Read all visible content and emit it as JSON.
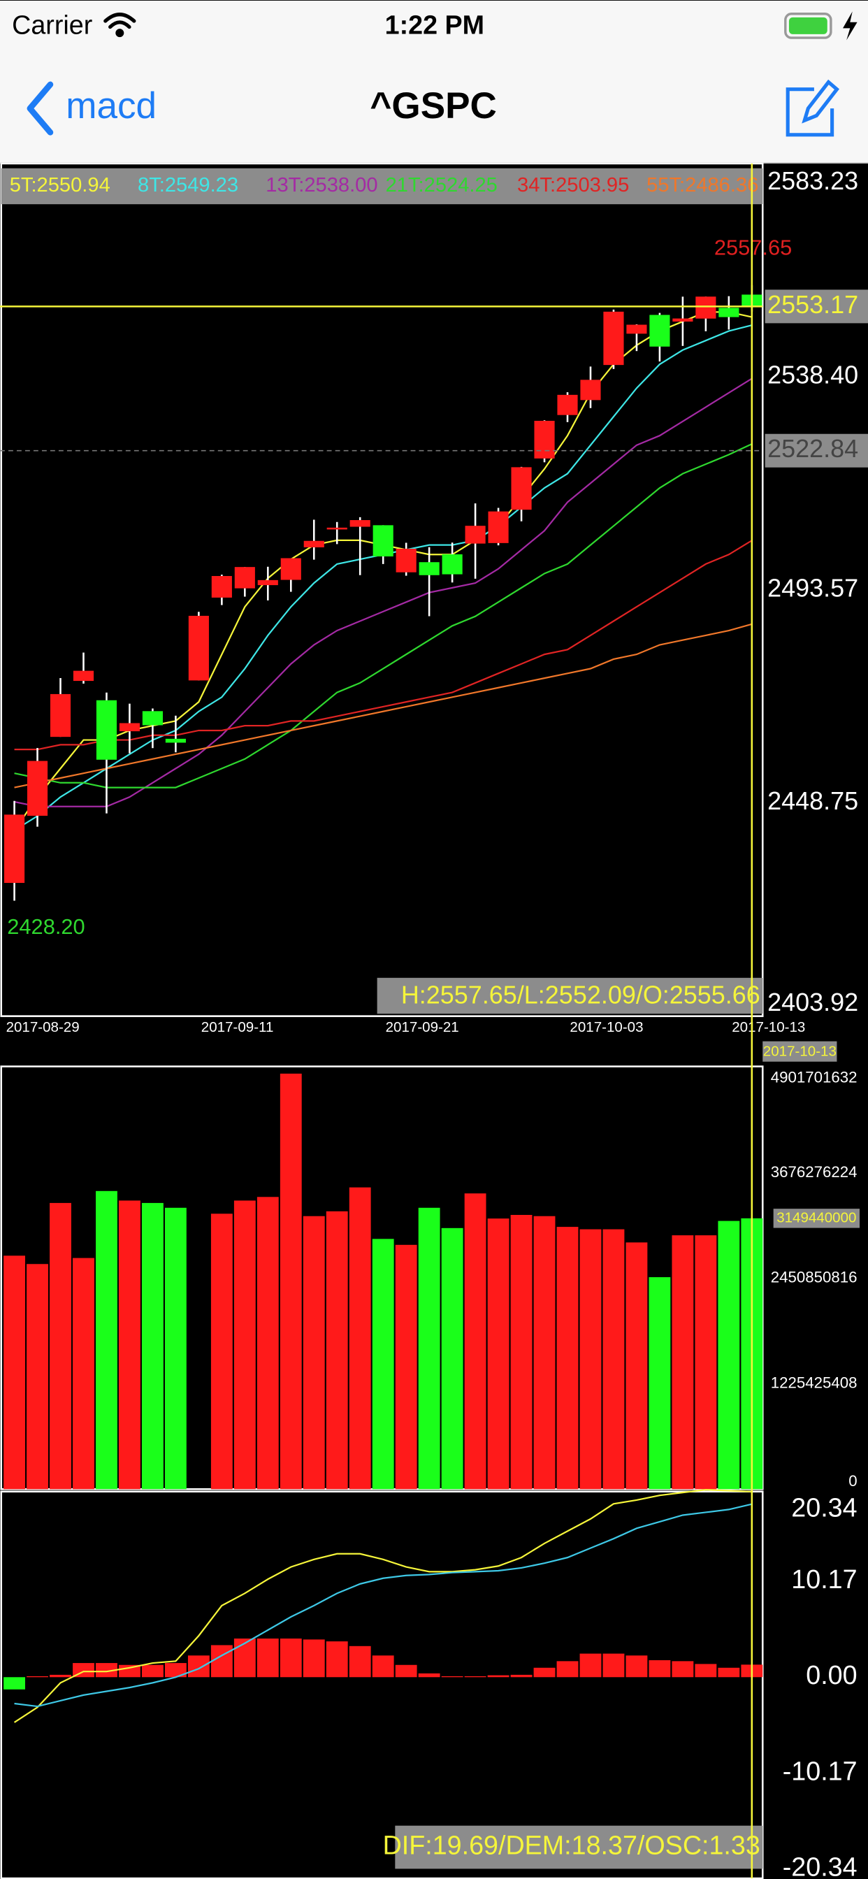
{
  "status_bar": {
    "carrier": "Carrier",
    "time": "1:22 PM"
  },
  "nav": {
    "back": "macd",
    "title": "^GSPC"
  },
  "chart_data": [
    {
      "type": "candlestick",
      "categories": [
        "2017-08-29",
        null,
        null,
        null,
        null,
        null,
        null,
        null,
        "2017-09-11",
        null,
        null,
        null,
        null,
        null,
        null,
        null,
        "2017-09-21",
        null,
        null,
        null,
        null,
        null,
        null,
        null,
        "2017-10-03",
        null,
        null,
        null,
        null,
        null,
        null,
        null,
        "2017-10-13"
      ],
      "open": [
        2431.94,
        2446.06,
        2462.65,
        2474.42,
        2470.35,
        2463.83,
        2468.06,
        2462.25,
        2474.52,
        2491.94,
        2493.89,
        2494.56,
        2495.67,
        2502.51,
        2506.29,
        2506.84,
        2507.16,
        2497.26,
        2499.39,
        2501.04,
        2503.3,
        2503.41,
        2510.42,
        2521.2,
        2530.34,
        2533.48,
        2540.86,
        2547.44,
        2551.39,
        2549.99,
        2550.62,
        2552.88,
        2555.66
      ],
      "high": [
        2449.19,
        2460.31,
        2475.01,
        2480.38,
        2471.97,
        2469.64,
        2468.62,
        2467.11,
        2488.95,
        2496.77,
        2498.37,
        2498.43,
        2500.23,
        2508.32,
        2507.84,
        2508.85,
        2507.16,
        2503.47,
        2502.54,
        2503.51,
        2511.75,
        2510.81,
        2519.44,
        2529.23,
        2535.13,
        2540.53,
        2552.51,
        2549.41,
        2551.82,
        2555.23,
        2555.24,
        2555.33,
        2557.65
      ],
      "low": [
        2428.2,
        2443.77,
        2462.65,
        2473.85,
        2446.55,
        2459.2,
        2460.29,
        2459.4,
        2474.52,
        2490.37,
        2492.14,
        2491.35,
        2493.16,
        2499.92,
        2503.19,
        2496.67,
        2499,
        2496.54,
        2488.03,
        2495.12,
        2495.91,
        2502.93,
        2507.99,
        2520.4,
        2528.85,
        2531.8,
        2540.02,
        2543.79,
        2541.6,
        2544.86,
        2547.95,
        2548.31,
        2552.09
      ],
      "close": [
        2446.3,
        2457.59,
        2471.65,
        2476.55,
        2457.85,
        2465.54,
        2465.1,
        2461.43,
        2488.11,
        2496.48,
        2498.37,
        2495.62,
        2500.23,
        2503.87,
        2506.65,
        2508.24,
        2500.6,
        2502.22,
        2496.66,
        2496.84,
        2507.04,
        2510.06,
        2519.36,
        2529.12,
        2534.58,
        2537.74,
        2552.07,
        2549.33,
        2544.73,
        2550.64,
        2555.24,
        2550.93,
        2553.17
      ],
      "up_color": "#ff1a1a",
      "down_color": "#1aff1a",
      "series": [
        {
          "name": "5T:2550.94",
          "color": "#f5f53a",
          "values": [
            2443,
            2450,
            2456,
            2462,
            2462,
            2464,
            2465,
            2466,
            2470,
            2480,
            2490,
            2496,
            2500,
            2503,
            2504,
            2504,
            2503,
            2502,
            2501,
            2501,
            2504,
            2507,
            2513,
            2519,
            2526,
            2535,
            2541,
            2545,
            2548,
            2550,
            2552,
            2552,
            2550.94
          ]
        },
        {
          "name": "8T:2549.23",
          "color": "#3ee6e6",
          "values": [
            2443,
            2446,
            2450,
            2453,
            2456,
            2459,
            2462,
            2464,
            2468,
            2471,
            2477,
            2484,
            2490,
            2495,
            2499,
            2500,
            2501,
            2502,
            2503,
            2503,
            2504,
            2507,
            2511,
            2515,
            2518,
            2524,
            2530,
            2536,
            2541,
            2544,
            2546,
            2548,
            2549.23
          ]
        },
        {
          "name": "13T:2538.00",
          "color": "#a42aa4",
          "values": [
            2449,
            2448,
            2448,
            2448,
            2448,
            2450,
            2453,
            2456,
            2459,
            2463,
            2468,
            2473,
            2478,
            2482,
            2485,
            2487,
            2489,
            2491,
            2493,
            2494,
            2495,
            2498,
            2502,
            2506,
            2512,
            2516,
            2520,
            2524,
            2526,
            2529,
            2532,
            2535,
            2538
          ]
        },
        {
          "name": "21T:2524.25",
          "color": "#2fd82f",
          "values": [
            2455,
            2454,
            2453,
            2453,
            2452,
            2452,
            2452,
            2452,
            2454,
            2456,
            2458,
            2461,
            2464,
            2468,
            2472,
            2474,
            2477,
            2480,
            2483,
            2486,
            2488,
            2491,
            2494,
            2497,
            2499,
            2503,
            2507,
            2511,
            2515,
            2518,
            2520,
            2522,
            2524.25
          ]
        },
        {
          "name": "34T:2503.95",
          "color": "#e02424",
          "values": [
            2460,
            2460,
            2461,
            2461,
            2462,
            2462,
            2463,
            2463,
            2464,
            2464,
            2465,
            2465,
            2466,
            2466,
            2467,
            2468,
            2469,
            2470,
            2471,
            2472,
            2474,
            2476,
            2478,
            2480,
            2481,
            2484,
            2487,
            2490,
            2493,
            2496,
            2499,
            2501,
            2503.95
          ]
        },
        {
          "name": "55T:2486.36",
          "color": "#f0772a",
          "values": [
            2452,
            2453,
            2454,
            2455,
            2456,
            2457,
            2458,
            2459,
            2460,
            2461,
            2462,
            2463,
            2464,
            2465,
            2466,
            2467,
            2468,
            2469,
            2470,
            2471,
            2472,
            2473,
            2474,
            2475,
            2476,
            2477,
            2479,
            2480,
            2482,
            2483,
            2484,
            2485,
            2486.36
          ]
        }
      ],
      "ylim": [
        2403.92,
        2583.23
      ],
      "yticks": [
        2403.92,
        2448.75,
        2493.57,
        {
          "value": 2538.4,
          "label": "2538.40"
        },
        2583.23
      ],
      "last_price": 2553.17,
      "crosshair_price": 2522.84,
      "max_annotation": 2557.65,
      "min_annotation": {
        "value": 2428.2,
        "label": "2428.20"
      },
      "info": "H:2557.65/L:2552.09/O:2555.66"
    },
    {
      "type": "bar",
      "values": [
        2715000000,
        2618000000,
        3328000000,
        2688000000,
        3467000000,
        3356000000,
        3328000000,
        3272000000,
        0,
        3203000000,
        3356000000,
        3398000000,
        4832000000,
        3175000000,
        3231000000,
        3509000000,
        2910000000,
        2841000000,
        3272000000,
        3036000000,
        3439000000,
        3147000000,
        3189000000,
        3175000000,
        3050000000,
        3022000000,
        3022000000,
        2869000000,
        2465000000,
        2952000000,
        2952000000,
        3119000000,
        3149440000
      ],
      "ylim": [
        0,
        4901701632
      ],
      "yticks": [
        0,
        1225425408,
        2450850816,
        3676276224,
        4901701632
      ],
      "crosshair_value": 3149440000
    },
    {
      "type": "macd",
      "dif": [
        -4.8,
        -3.2,
        -0.6,
        0.6,
        0.6,
        1.0,
        1.5,
        1.7,
        4.4,
        7.6,
        8.9,
        10.4,
        11.7,
        12.5,
        13.1,
        13.1,
        12.5,
        11.7,
        11.2,
        11.2,
        11.4,
        11.8,
        12.7,
        14.2,
        15.5,
        16.8,
        18.4,
        18.8,
        19.3,
        19.6,
        19.9,
        19.8,
        19.69
      ],
      "dem": [
        -2.8,
        -3.1,
        -2.5,
        -1.9,
        -1.5,
        -1.1,
        -0.6,
        0,
        0.9,
        2.3,
        3.6,
        5.0,
        6.4,
        7.6,
        8.9,
        9.9,
        10.5,
        10.8,
        10.9,
        11.1,
        11.2,
        11.3,
        11.6,
        12.1,
        12.7,
        13.7,
        14.7,
        15.8,
        16.5,
        17.2,
        17.5,
        17.8,
        18.37
      ],
      "osc": [
        -1.3,
        0.1,
        0.25,
        1.5,
        1.5,
        1.3,
        1.3,
        1.5,
        2.3,
        3.4,
        4.1,
        4.1,
        4.1,
        4.0,
        3.8,
        3.3,
        2.3,
        1.3,
        0.4,
        0.1,
        0.1,
        0.2,
        0.25,
        1.0,
        1.7,
        2.5,
        2.5,
        2.3,
        1.8,
        1.7,
        1.4,
        1.0,
        1.33
      ],
      "dif_color": "#f5f53a",
      "dem_color": "#3ec8e6",
      "ylim": [
        -20.34,
        20.34
      ],
      "yticks": [
        -20.34,
        -10.17,
        {
          "value": 0,
          "label": "0.00"
        },
        10.17,
        20.34
      ],
      "info": "DIF:19.69/DEM:18.37/OSC:1.33"
    }
  ]
}
